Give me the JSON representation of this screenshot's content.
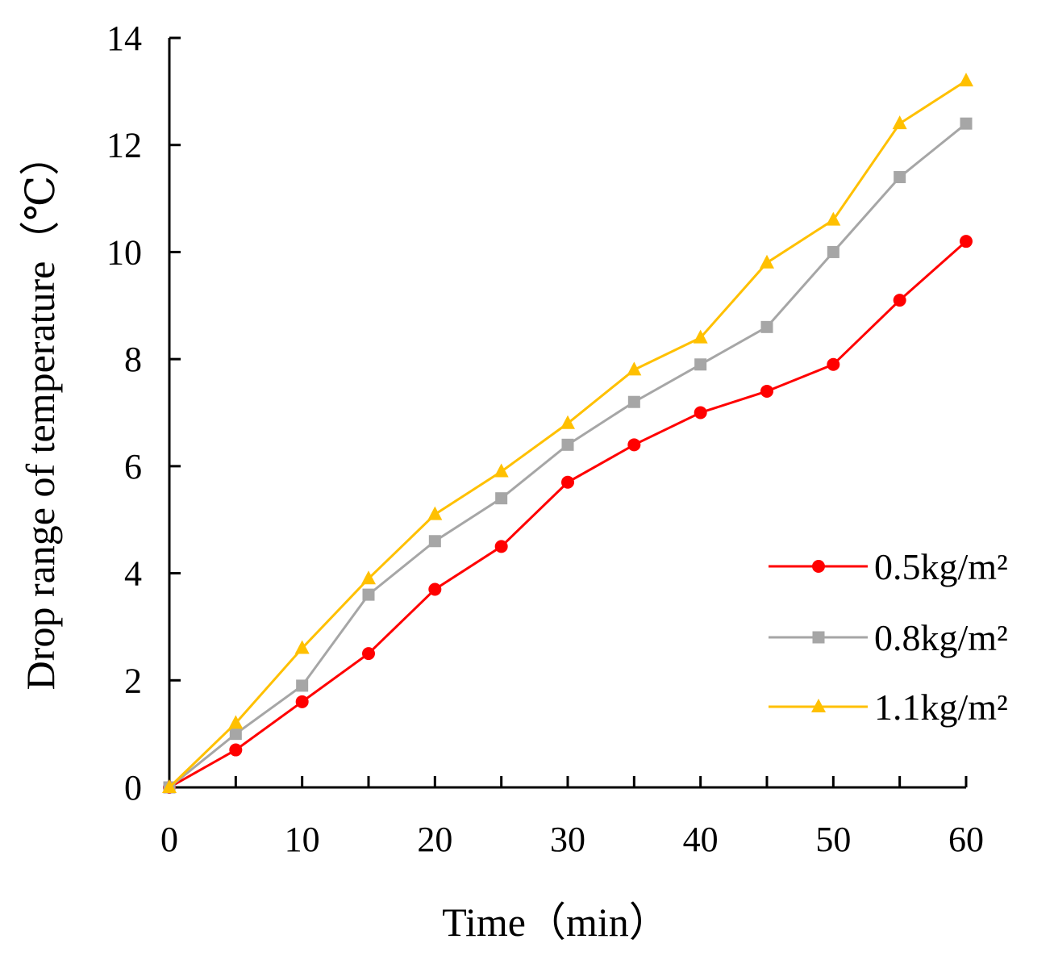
{
  "chart_data": {
    "type": "line",
    "title": "",
    "xlabel": "Time（min）",
    "ylabel": "Drop range of temperature（℃）",
    "xlim": [
      0,
      60
    ],
    "ylim": [
      0,
      14
    ],
    "xticks": [
      0,
      10,
      20,
      30,
      40,
      50,
      60
    ],
    "yticks": [
      0,
      2,
      4,
      6,
      8,
      10,
      12,
      14
    ],
    "grid": false,
    "legend_position": "right",
    "x": [
      0,
      5,
      10,
      15,
      20,
      25,
      30,
      35,
      40,
      45,
      50,
      55,
      60
    ],
    "series": [
      {
        "name": "0.5kg/m²",
        "color": "#ff0000",
        "marker": "circle",
        "values": [
          0,
          0.7,
          1.6,
          2.5,
          3.7,
          4.5,
          5.7,
          6.4,
          7.0,
          7.4,
          7.9,
          9.1,
          10.2
        ]
      },
      {
        "name": "0.8kg/m²",
        "color": "#a6a6a6",
        "marker": "square",
        "values": [
          0,
          1.0,
          1.9,
          3.6,
          4.6,
          5.4,
          6.4,
          7.2,
          7.9,
          8.6,
          10.0,
          11.4,
          12.4
        ]
      },
      {
        "name": "1.1kg/m²",
        "color": "#ffc000",
        "marker": "triangle",
        "values": [
          0,
          1.2,
          2.6,
          3.9,
          5.1,
          5.9,
          6.8,
          7.8,
          8.4,
          9.8,
          10.6,
          12.4,
          13.2
        ]
      }
    ]
  }
}
